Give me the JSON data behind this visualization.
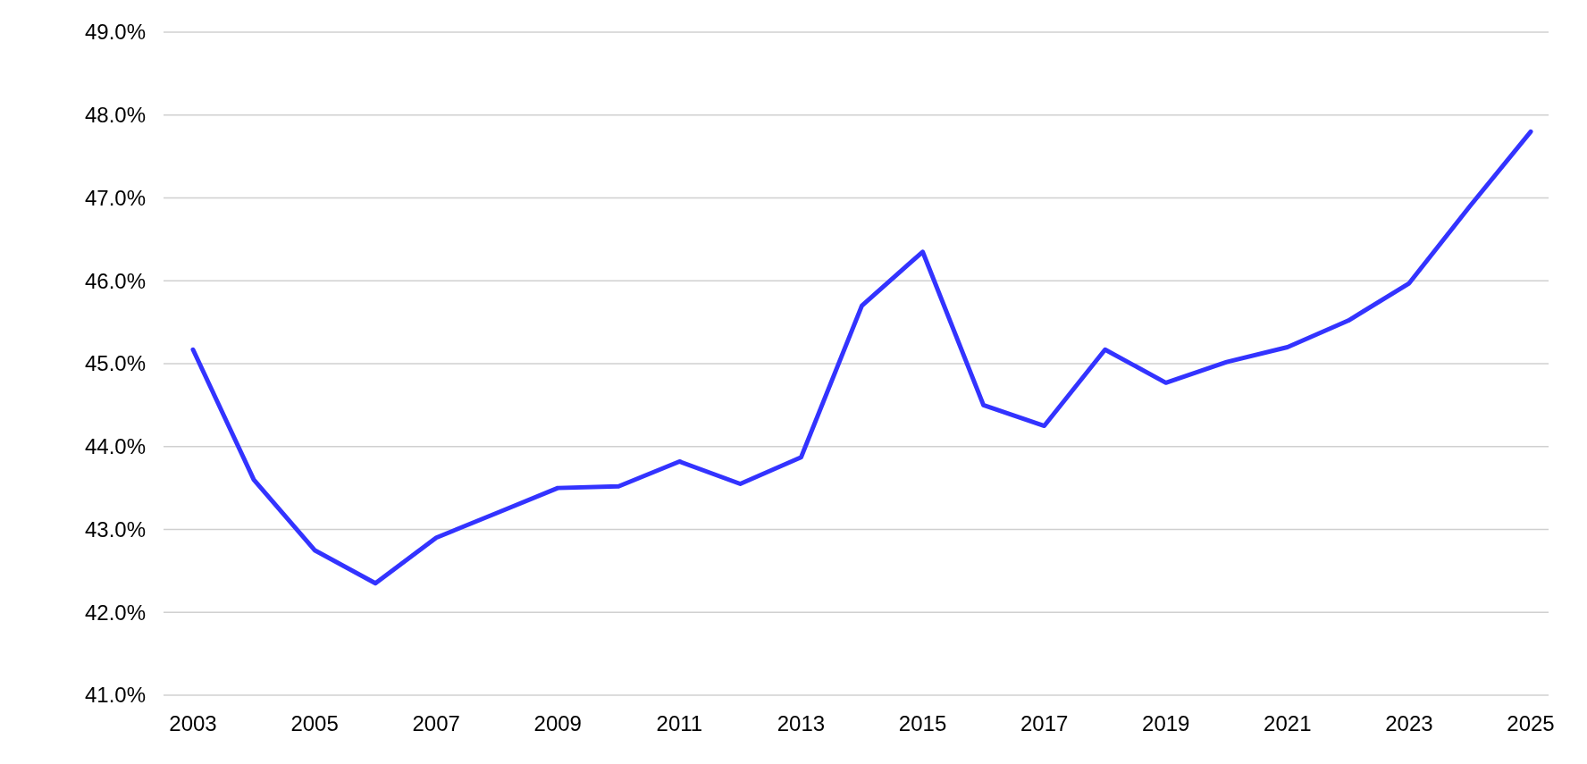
{
  "chart_data": {
    "type": "line",
    "categories": [
      "2003",
      null,
      "2005",
      null,
      "2007",
      null,
      "2009",
      null,
      "2011",
      null,
      "2013",
      null,
      "2015",
      null,
      "2017",
      null,
      "2019",
      null,
      "2021",
      null,
      "2023",
      null,
      "2025"
    ],
    "series": [
      {
        "color": "#3333ff",
        "values": [
          45.17,
          43.6,
          42.75,
          42.35,
          42.9,
          43.2,
          43.5,
          43.52,
          43.82,
          43.55,
          43.87,
          45.7,
          46.35,
          44.5,
          44.25,
          45.17,
          44.77,
          45.02,
          45.2,
          45.52,
          45.97,
          46.9,
          47.8
        ]
      }
    ],
    "ylim": [
      41,
      49
    ],
    "yticks": [
      {
        "value": 41,
        "label": "41.0%"
      },
      {
        "value": 42,
        "label": "42.0%"
      },
      {
        "value": 43,
        "label": "43.0%"
      },
      {
        "value": 44,
        "label": "44.0%"
      },
      {
        "value": 45,
        "label": "45.0%"
      },
      {
        "value": 46,
        "label": "46.0%"
      },
      {
        "value": 47,
        "label": "47.0%"
      },
      {
        "value": 48,
        "label": "48.0%"
      },
      {
        "value": 49,
        "label": "49.0%"
      }
    ],
    "grid": "y",
    "marker": "none",
    "line_style": "solid"
  }
}
